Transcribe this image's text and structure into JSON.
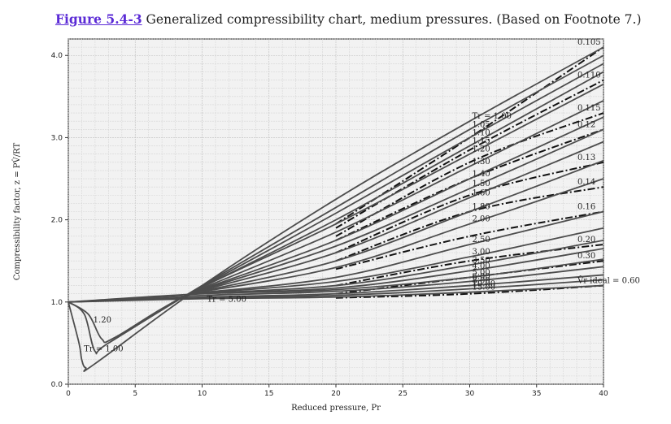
{
  "caption": {
    "figure_link": "Figure 5.4-3",
    "text": " Generalized compressibility chart, medium pressures. (Based on Footnote 7.)"
  },
  "chart_data": {
    "type": "line",
    "xlabel": "Reduced pressure, Pr",
    "ylabel": "Compressibility factor, z = PV̂/RT",
    "xlim": [
      0,
      40
    ],
    "ylim": [
      0,
      4.2
    ],
    "xticks": [
      0,
      5,
      10,
      15,
      20,
      25,
      30,
      35,
      40
    ],
    "yticks": [
      "0.0",
      "1.0",
      "2.0",
      "3.0",
      "4.0"
    ],
    "grid": true,
    "colors": {
      "grid": "#bdbdbd",
      "minor_grid": "#d6d6d6",
      "curve": "#4d4d4d",
      "dashed": "#111111",
      "background": "#f2f2f2"
    },
    "isotherms": [
      {
        "Tr": "1.00",
        "label_left": "Tr = 1.00",
        "label_right": "Tr = 1.00",
        "points": [
          [
            0,
            1.0
          ],
          [
            0.8,
            0.5
          ],
          [
            1.0,
            0.3
          ],
          [
            1.3,
            0.2
          ],
          [
            2,
            0.25
          ],
          [
            10,
            1.2
          ],
          [
            20,
            2.25
          ],
          [
            30,
            3.2
          ],
          [
            40,
            4.1
          ]
        ]
      },
      {
        "Tr": "1.05",
        "label_right": "1.05",
        "points": [
          [
            0,
            1.0
          ],
          [
            1.2,
            0.85
          ],
          [
            2,
            0.4
          ],
          [
            3,
            0.5
          ],
          [
            10,
            1.2
          ],
          [
            20,
            2.15
          ],
          [
            30,
            3.1
          ],
          [
            40,
            4.0
          ]
        ]
      },
      {
        "Tr": "1.10",
        "label_right": "1.10",
        "points": [
          [
            9,
            1.1
          ],
          [
            20,
            2.08
          ],
          [
            30,
            3.0
          ],
          [
            40,
            3.9
          ]
        ]
      },
      {
        "Tr": "1.15",
        "label_right": "1.15",
        "points": [
          [
            9,
            1.1
          ],
          [
            20,
            2.0
          ],
          [
            30,
            2.9
          ],
          [
            40,
            3.8
          ]
        ]
      },
      {
        "Tr": "1.20",
        "label_left": "1.20",
        "label_right": "1.20",
        "points": [
          [
            0,
            1.0
          ],
          [
            1.5,
            0.85
          ],
          [
            2.5,
            0.55
          ],
          [
            3.5,
            0.57
          ],
          [
            9,
            1.1
          ],
          [
            20,
            1.95
          ],
          [
            30,
            2.8
          ],
          [
            40,
            3.65
          ]
        ]
      },
      {
        "Tr": "1.30",
        "label_right": "1.30",
        "points": [
          [
            9,
            1.1
          ],
          [
            20,
            1.85
          ],
          [
            30,
            2.65
          ],
          [
            40,
            3.45
          ]
        ]
      },
      {
        "Tr": "1.40",
        "label_right": "1.40",
        "points": [
          [
            9,
            1.1
          ],
          [
            20,
            1.75
          ],
          [
            30,
            2.5
          ],
          [
            40,
            3.25
          ]
        ]
      },
      {
        "Tr": "1.50",
        "label_right": "1.50",
        "points": [
          [
            9,
            1.1
          ],
          [
            20,
            1.68
          ],
          [
            30,
            2.38
          ],
          [
            40,
            3.1
          ]
        ]
      },
      {
        "Tr": "1.60",
        "label_right": "1.60",
        "points": [
          [
            9,
            1.1
          ],
          [
            20,
            1.6
          ],
          [
            30,
            2.27
          ],
          [
            40,
            2.95
          ]
        ]
      },
      {
        "Tr": "1.80",
        "label_right": "1.80",
        "points": [
          [
            9,
            1.1
          ],
          [
            20,
            1.5
          ],
          [
            30,
            2.1
          ],
          [
            40,
            2.72
          ]
        ]
      },
      {
        "Tr": "2.00",
        "label_right": "2.00",
        "points": [
          [
            9,
            1.1
          ],
          [
            20,
            1.42
          ],
          [
            30,
            1.95
          ],
          [
            40,
            2.5
          ]
        ]
      },
      {
        "Tr": "2.50",
        "label_right": "2.50",
        "points": [
          [
            9,
            1.1
          ],
          [
            20,
            1.3
          ],
          [
            30,
            1.7
          ],
          [
            40,
            2.1
          ]
        ]
      },
      {
        "Tr": "3.00",
        "label_right": "3.00",
        "points": [
          [
            9,
            1.1
          ],
          [
            20,
            1.25
          ],
          [
            30,
            1.55
          ],
          [
            40,
            1.9
          ]
        ]
      },
      {
        "Tr": "3.50",
        "label_right": "3.50",
        "points": [
          [
            9,
            1.1
          ],
          [
            20,
            1.2
          ],
          [
            30,
            1.45
          ],
          [
            40,
            1.75
          ]
        ]
      },
      {
        "Tr": "4.00",
        "label_right": "4.00",
        "points": [
          [
            9,
            1.1
          ],
          [
            20,
            1.17
          ],
          [
            30,
            1.38
          ],
          [
            40,
            1.65
          ]
        ]
      },
      {
        "Tr": "5.00",
        "label_left": "Tr = 5.00",
        "label_right": "5.00",
        "points": [
          [
            0,
            1.0
          ],
          [
            10,
            1.1
          ],
          [
            20,
            1.15
          ],
          [
            30,
            1.3
          ],
          [
            40,
            1.52
          ]
        ]
      },
      {
        "Tr": "6.00",
        "label_right": "6.00",
        "points": [
          [
            0,
            1.0
          ],
          [
            10,
            1.08
          ],
          [
            20,
            1.13
          ],
          [
            30,
            1.25
          ],
          [
            40,
            1.43
          ]
        ]
      },
      {
        "Tr": "8.00",
        "label_right": "8.00",
        "points": [
          [
            0,
            1.0
          ],
          [
            10,
            1.06
          ],
          [
            20,
            1.1
          ],
          [
            30,
            1.2
          ],
          [
            40,
            1.33
          ]
        ]
      },
      {
        "Tr": "10.00",
        "label_right": "10.00",
        "points": [
          [
            0,
            1.0
          ],
          [
            10,
            1.05
          ],
          [
            20,
            1.08
          ],
          [
            30,
            1.16
          ],
          [
            40,
            1.27
          ]
        ]
      },
      {
        "Tr": "15.00",
        "label_right": "15.00",
        "points": [
          [
            0,
            1.0
          ],
          [
            10,
            1.04
          ],
          [
            20,
            1.06
          ],
          [
            30,
            1.12
          ],
          [
            40,
            1.2
          ]
        ]
      }
    ],
    "ideal_volume_lines": [
      {
        "Vr": "0.105",
        "label": "0.105",
        "points": [
          [
            20,
            1.95
          ],
          [
            30,
            3.0
          ],
          [
            40,
            4.1
          ]
        ]
      },
      {
        "Vr": "0.110",
        "label": "0.110",
        "points": [
          [
            20,
            1.9
          ],
          [
            30,
            2.85
          ],
          [
            40,
            3.7
          ]
        ]
      },
      {
        "Vr": "0.115",
        "label": "0.115",
        "points": [
          [
            20,
            1.8
          ],
          [
            30,
            2.7
          ],
          [
            40,
            3.3
          ]
        ]
      },
      {
        "Vr": "0.12",
        "label": "0.12",
        "points": [
          [
            20,
            1.75
          ],
          [
            30,
            2.5
          ],
          [
            40,
            3.1
          ]
        ]
      },
      {
        "Vr": "0.13",
        "label": "0.13",
        "points": [
          [
            20,
            1.6
          ],
          [
            30,
            2.3
          ],
          [
            40,
            2.7
          ]
        ]
      },
      {
        "Vr": "0.14",
        "label": "0.14",
        "points": [
          [
            20,
            1.5
          ],
          [
            30,
            2.1
          ],
          [
            40,
            2.4
          ]
        ]
      },
      {
        "Vr": "0.16",
        "label": "0.16",
        "points": [
          [
            20,
            1.4
          ],
          [
            30,
            1.8
          ],
          [
            40,
            2.1
          ]
        ]
      },
      {
        "Vr": "0.20",
        "label": "0.20",
        "points": [
          [
            20,
            1.2
          ],
          [
            30,
            1.5
          ],
          [
            40,
            1.7
          ]
        ]
      },
      {
        "Vr": "0.30",
        "label": "0.30",
        "points": [
          [
            20,
            1.1
          ],
          [
            30,
            1.3
          ],
          [
            40,
            1.5
          ]
        ]
      },
      {
        "Vr": "0.60",
        "label": "V̂r ideal = 0.60",
        "points": [
          [
            20,
            1.05
          ],
          [
            30,
            1.1
          ],
          [
            40,
            1.2
          ]
        ]
      }
    ]
  }
}
